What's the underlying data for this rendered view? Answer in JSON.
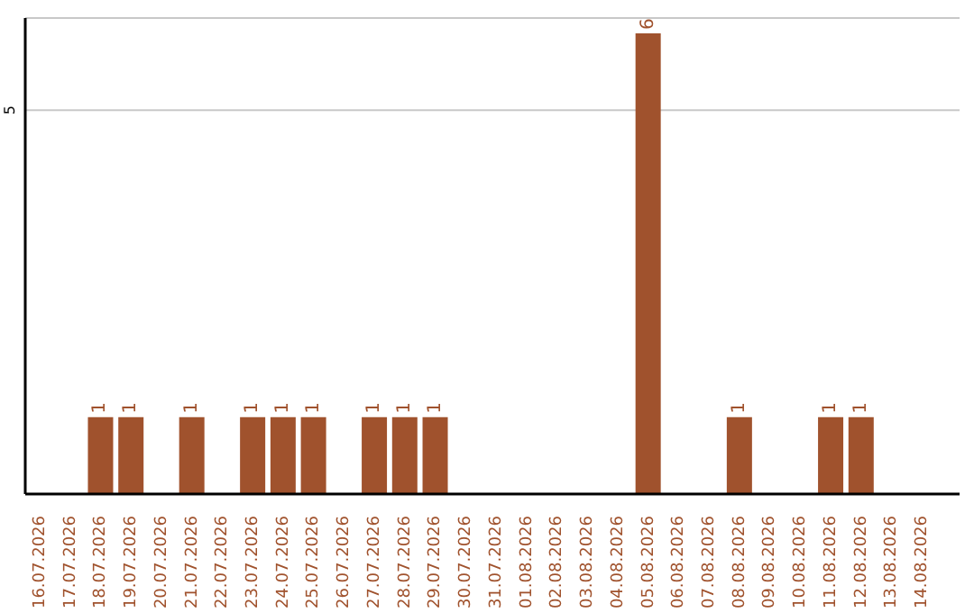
{
  "chart_data": {
    "type": "bar",
    "categories": [
      "16.07.2026",
      "17.07.2026",
      "18.07.2026",
      "19.07.2026",
      "20.07.2026",
      "21.07.2026",
      "22.07.2026",
      "23.07.2026",
      "24.07.2026",
      "25.07.2026",
      "26.07.2026",
      "27.07.2026",
      "28.07.2026",
      "29.07.2026",
      "30.07.2026",
      "31.07.2026",
      "01.08.2026",
      "02.08.2026",
      "03.08.2026",
      "04.08.2026",
      "05.08.2026",
      "06.08.2026",
      "07.08.2026",
      "08.08.2026",
      "09.08.2026",
      "10.08.2026",
      "11.08.2026",
      "12.08.2026",
      "13.08.2026",
      "14.08.2026"
    ],
    "values": [
      0,
      0,
      1,
      1,
      0,
      1,
      0,
      1,
      1,
      1,
      0,
      1,
      1,
      1,
      0,
      0,
      0,
      0,
      0,
      0,
      6,
      0,
      0,
      1,
      0,
      0,
      1,
      1,
      0,
      0
    ],
    "value_labels": [
      null,
      null,
      "1",
      "1",
      null,
      "1",
      null,
      "1",
      "1",
      "1",
      null,
      "1",
      "1",
      "1",
      null,
      null,
      null,
      null,
      null,
      null,
      "6",
      null,
      null,
      "1",
      null,
      null,
      "1",
      "1",
      null,
      null
    ],
    "color": "#a0522d",
    "ylim": [
      0,
      6.2
    ],
    "yticks": [
      5
    ],
    "grid": "y"
  }
}
